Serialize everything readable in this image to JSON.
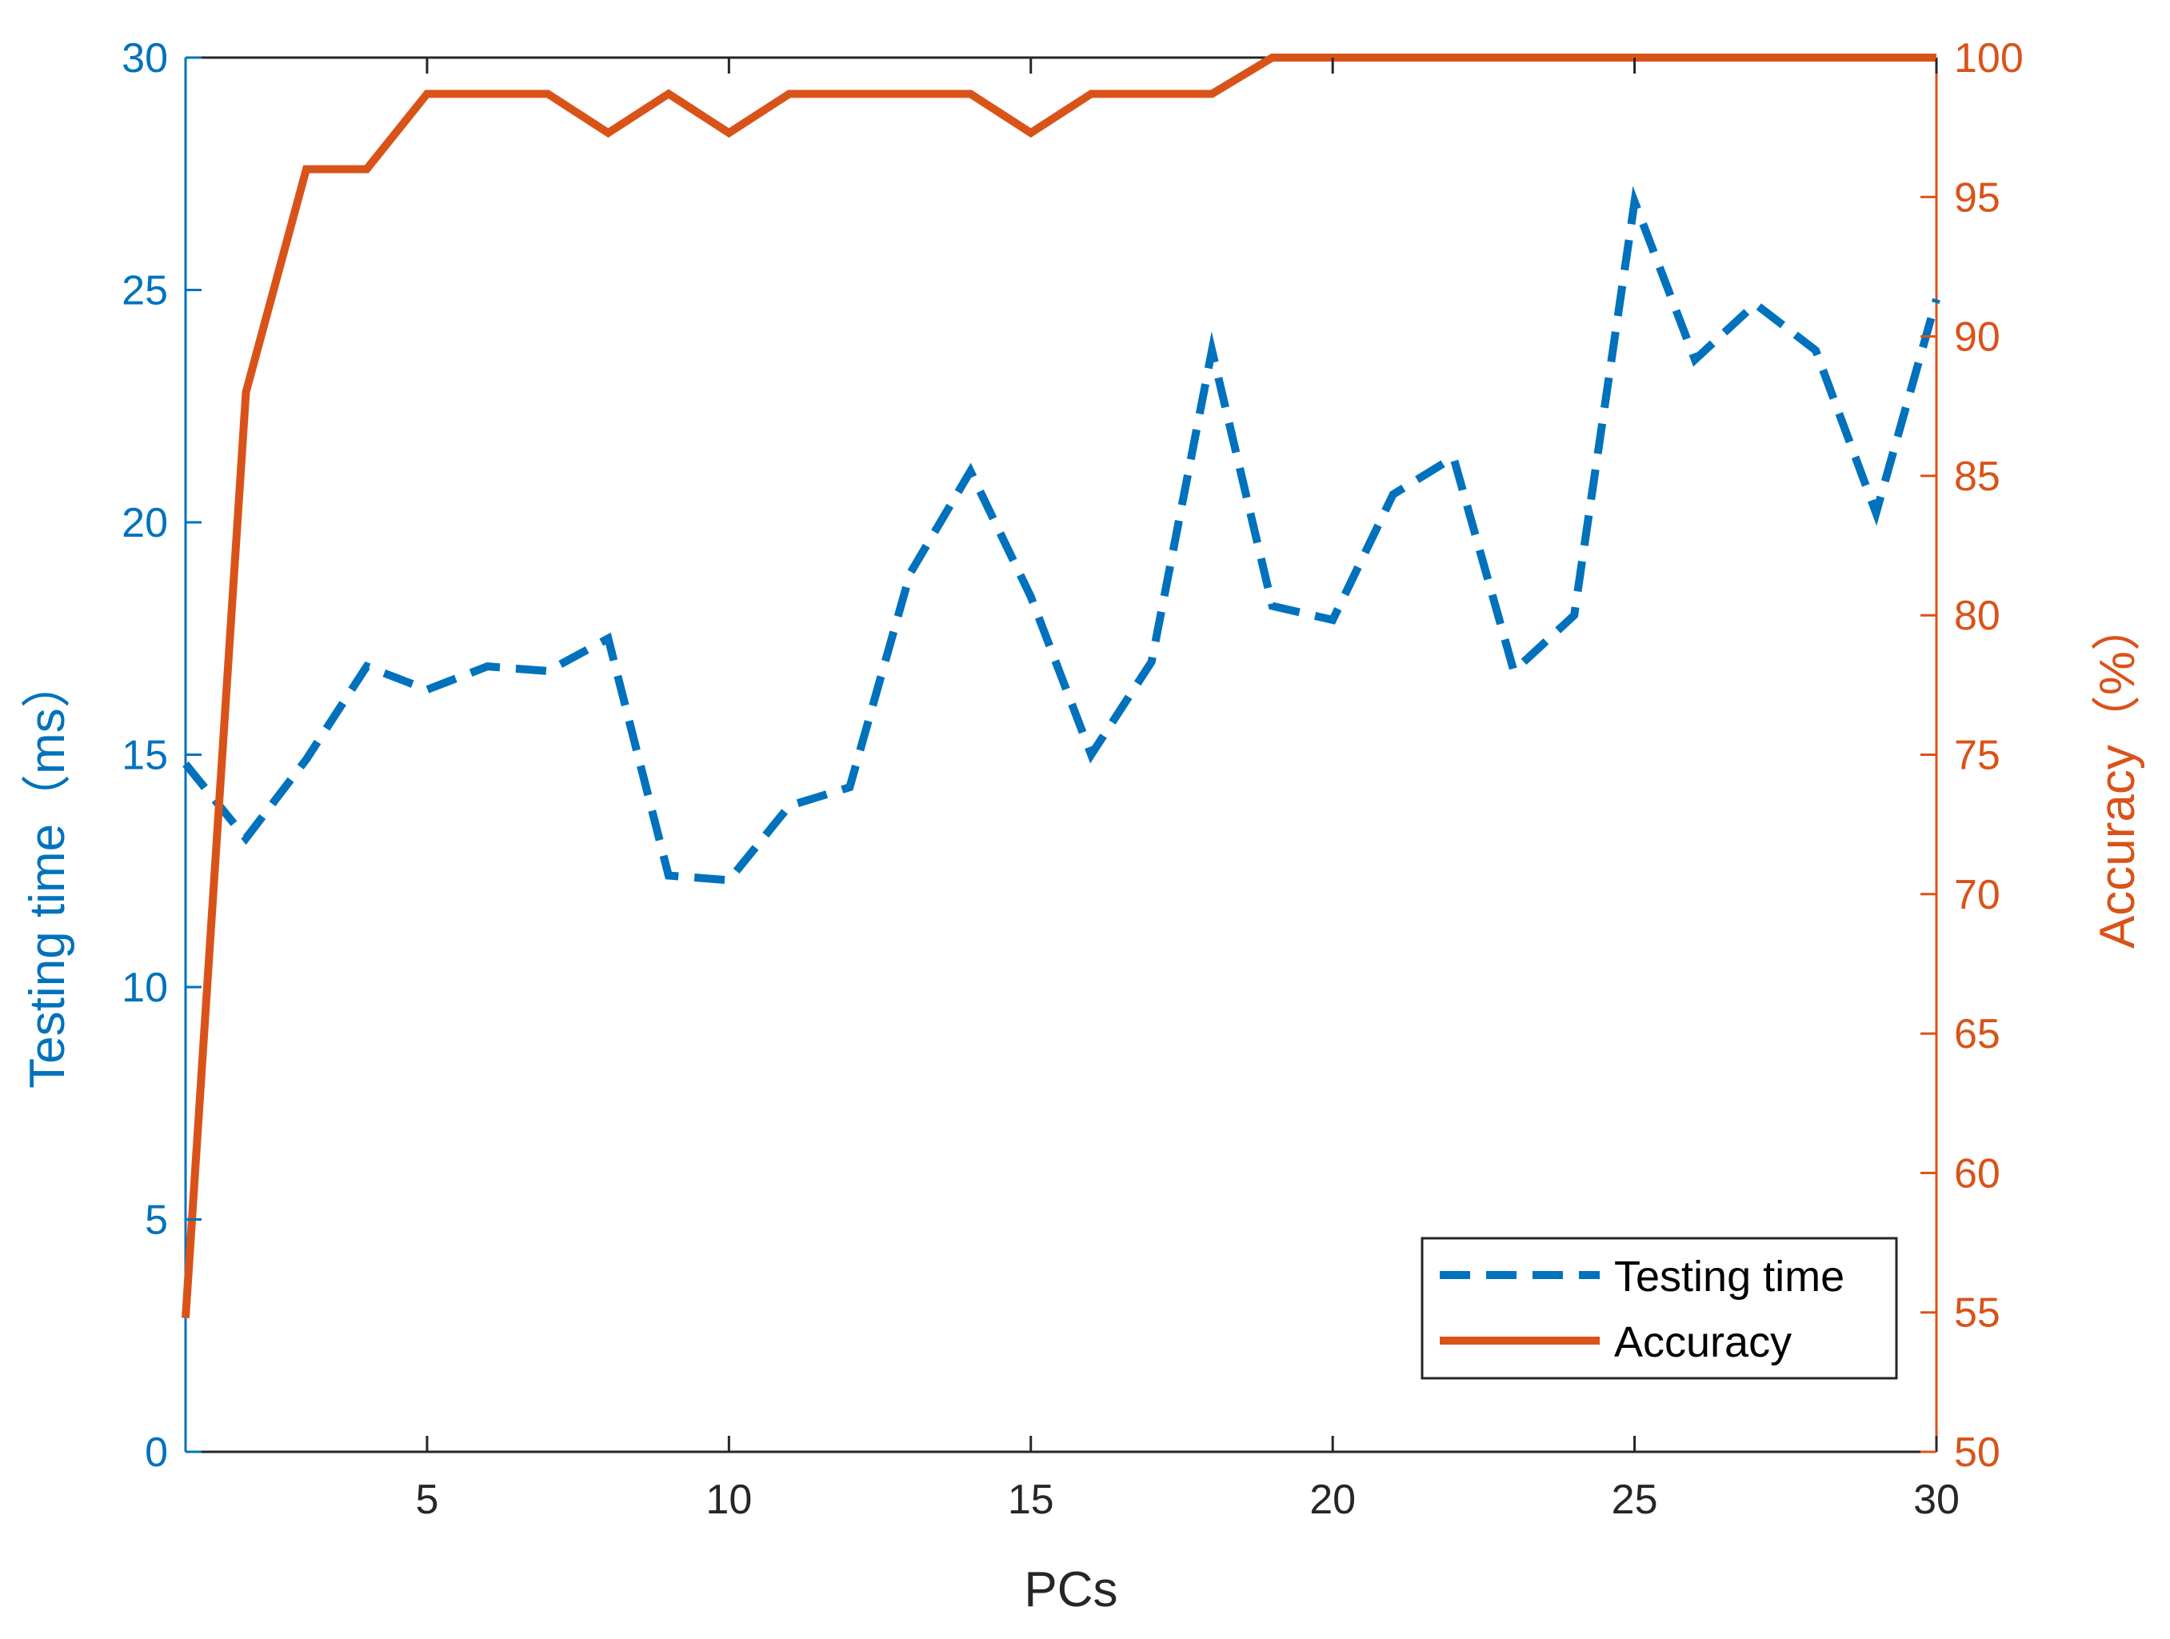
{
  "chart_data": {
    "type": "line",
    "xlabel": "PCs",
    "ylabel_left": "Testing time（ms）",
    "ylabel_right": "Accuracy（%）",
    "xlim": [
      1,
      30
    ],
    "ylim_left": [
      0,
      30
    ],
    "ylim_right": [
      50,
      100
    ],
    "x_ticks": [
      5,
      10,
      15,
      20,
      25,
      30
    ],
    "y_ticks_left": [
      0,
      5,
      10,
      15,
      20,
      25,
      30
    ],
    "y_ticks_right": [
      50,
      55,
      60,
      65,
      70,
      75,
      80,
      85,
      90,
      95,
      100
    ],
    "grid": false,
    "legend_position": "bottom-right",
    "x": [
      1,
      2,
      3,
      4,
      5,
      6,
      7,
      8,
      9,
      10,
      11,
      12,
      13,
      14,
      15,
      16,
      17,
      18,
      19,
      20,
      21,
      22,
      23,
      24,
      25,
      26,
      27,
      28,
      29,
      30
    ],
    "series": [
      {
        "name": "Testing time",
        "axis": "left",
        "style": "dashed",
        "color": "#0072BD",
        "values": [
          14.8,
          13.2,
          14.9,
          16.9,
          16.4,
          16.9,
          16.8,
          17.5,
          12.4,
          12.3,
          13.9,
          14.3,
          18.9,
          21.1,
          18.4,
          15.0,
          17.0,
          23.7,
          18.2,
          17.9,
          20.6,
          21.4,
          16.8,
          18.0,
          26.9,
          23.5,
          24.7,
          23.7,
          20.2,
          24.8
        ]
      },
      {
        "name": "Accuracy",
        "axis": "right",
        "style": "solid",
        "color": "#D95319",
        "values": [
          54.8,
          88.0,
          96.0,
          96.0,
          98.7,
          98.7,
          98.7,
          97.3,
          98.7,
          97.3,
          98.7,
          98.7,
          98.7,
          98.7,
          97.3,
          98.7,
          98.7,
          98.7,
          100,
          100,
          100,
          100,
          100,
          100,
          100,
          100,
          100,
          100,
          100,
          100
        ]
      }
    ]
  }
}
